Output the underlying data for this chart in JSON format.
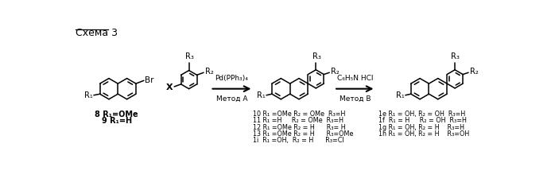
{
  "title": "Схема 3",
  "bg_color": "#ffffff",
  "arrow1_label_top": "Pd(PPh₃)₄",
  "arrow1_label_bot": "Метод A",
  "arrow2_label_top": "C₆H₅N HCl",
  "arrow2_label_bot": "Метод B",
  "label8": "8 R₁=OMe",
  "label9": "9 R₁=H",
  "products_left": [
    [
      "10 R₁ =OMe R₂ = OMe  R₃=H"
    ],
    [
      "11 R₁ =H     R₂ = OMe  R₃=H"
    ],
    [
      "12 R₁ =OMe R₂ = H      R₃= H"
    ],
    [
      "13 R₁ =OMe R₂ = H      R₃=OMe"
    ],
    [
      "1i  R₁ =OH,  R₂ = H      R₃=Cl"
    ]
  ],
  "products_right": [
    "1e R₁ = OH, R₂ = OH  R₃=H",
    "1f  R₁ = H     R₂ = OH  R₃=H",
    "1g R₁ = OH, R₂ = H    R₃=H",
    "1h R₁ = OH, R₂ = H    R₃=OH"
  ]
}
